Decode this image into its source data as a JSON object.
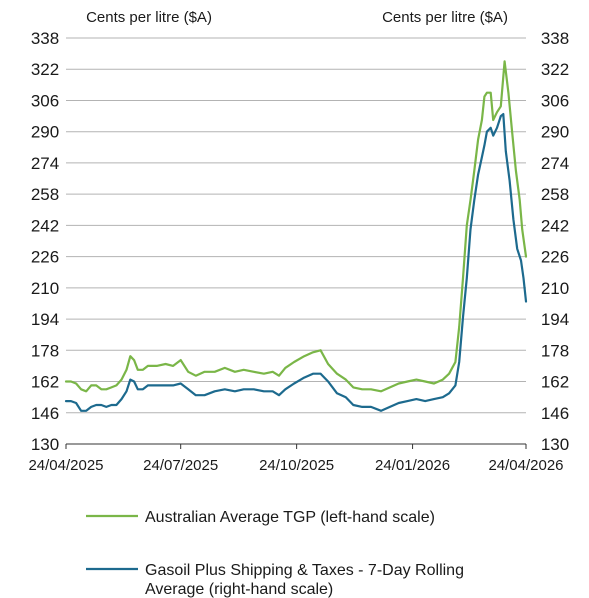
{
  "chart_data": {
    "type": "line",
    "left_axis_label": "Cents per litre ($A)",
    "right_axis_label": "Cents per litre ($A)",
    "ylim": [
      130,
      338
    ],
    "y_ticks": [
      338,
      322,
      306,
      290,
      274,
      258,
      242,
      226,
      210,
      194,
      178,
      162,
      146,
      130
    ],
    "x_range": [
      "2025-04-24",
      "2026-04-24"
    ],
    "x_tick_labels": [
      "24/04/2025",
      "24/07/2025",
      "24/10/2025",
      "24/01/2026",
      "24/04/2026"
    ],
    "grid": true,
    "legend_position": "bottom",
    "series": [
      {
        "name": "Australian Average TGP (left-hand scale)",
        "axis": "left",
        "color": "#7ab648",
        "points": [
          [
            "2025-04-24",
            162
          ],
          [
            "2025-04-28",
            162
          ],
          [
            "2025-05-02",
            161
          ],
          [
            "2025-05-06",
            158
          ],
          [
            "2025-05-10",
            157
          ],
          [
            "2025-05-14",
            160
          ],
          [
            "2025-05-18",
            160
          ],
          [
            "2025-05-22",
            158
          ],
          [
            "2025-05-26",
            158
          ],
          [
            "2025-05-30",
            159
          ],
          [
            "2025-06-03",
            160
          ],
          [
            "2025-06-07",
            163
          ],
          [
            "2025-06-11",
            168
          ],
          [
            "2025-06-14",
            175
          ],
          [
            "2025-06-17",
            173
          ],
          [
            "2025-06-20",
            168
          ],
          [
            "2025-06-24",
            168
          ],
          [
            "2025-06-28",
            170
          ],
          [
            "2025-07-05",
            170
          ],
          [
            "2025-07-12",
            171
          ],
          [
            "2025-07-18",
            170
          ],
          [
            "2025-07-24",
            173
          ],
          [
            "2025-07-30",
            167
          ],
          [
            "2025-08-05",
            165
          ],
          [
            "2025-08-12",
            167
          ],
          [
            "2025-08-20",
            167
          ],
          [
            "2025-08-28",
            169
          ],
          [
            "2025-09-05",
            167
          ],
          [
            "2025-09-12",
            168
          ],
          [
            "2025-09-20",
            167
          ],
          [
            "2025-09-28",
            166
          ],
          [
            "2025-10-05",
            167
          ],
          [
            "2025-10-10",
            165
          ],
          [
            "2025-10-15",
            169
          ],
          [
            "2025-10-22",
            172
          ],
          [
            "2025-10-30",
            175
          ],
          [
            "2025-11-06",
            177
          ],
          [
            "2025-11-12",
            178
          ],
          [
            "2025-11-18",
            171
          ],
          [
            "2025-11-25",
            166
          ],
          [
            "2025-12-02",
            163
          ],
          [
            "2025-12-08",
            159
          ],
          [
            "2025-12-15",
            158
          ],
          [
            "2025-12-22",
            158
          ],
          [
            "2025-12-30",
            157
          ],
          [
            "2026-01-06",
            159
          ],
          [
            "2026-01-13",
            161
          ],
          [
            "2026-01-20",
            162
          ],
          [
            "2026-01-27",
            163
          ],
          [
            "2026-02-03",
            162
          ],
          [
            "2026-02-10",
            161
          ],
          [
            "2026-02-17",
            163
          ],
          [
            "2026-02-22",
            166
          ],
          [
            "2026-02-27",
            172
          ],
          [
            "2026-03-02",
            190
          ],
          [
            "2026-03-05",
            215
          ],
          [
            "2026-03-08",
            242
          ],
          [
            "2026-03-11",
            255
          ],
          [
            "2026-03-14",
            270
          ],
          [
            "2026-03-17",
            286
          ],
          [
            "2026-03-20",
            296
          ],
          [
            "2026-03-22",
            308
          ],
          [
            "2026-03-24",
            310
          ],
          [
            "2026-03-27",
            310
          ],
          [
            "2026-03-29",
            296
          ],
          [
            "2026-04-01",
            300
          ],
          [
            "2026-04-04",
            303
          ],
          [
            "2026-04-07",
            326
          ],
          [
            "2026-04-10",
            310
          ],
          [
            "2026-04-13",
            290
          ],
          [
            "2026-04-16",
            270
          ],
          [
            "2026-04-19",
            255
          ],
          [
            "2026-04-21",
            240
          ],
          [
            "2026-04-24",
            226
          ]
        ]
      },
      {
        "name": "Gasoil Plus Shipping & Taxes - 7-Day Rolling Average (right-hand scale)",
        "axis": "right",
        "color": "#1d6a8e",
        "points": [
          [
            "2025-04-24",
            152
          ],
          [
            "2025-04-28",
            152
          ],
          [
            "2025-05-02",
            151
          ],
          [
            "2025-05-06",
            147
          ],
          [
            "2025-05-10",
            147
          ],
          [
            "2025-05-14",
            149
          ],
          [
            "2025-05-18",
            150
          ],
          [
            "2025-05-22",
            150
          ],
          [
            "2025-05-26",
            149
          ],
          [
            "2025-05-30",
            150
          ],
          [
            "2025-06-03",
            150
          ],
          [
            "2025-06-07",
            153
          ],
          [
            "2025-06-11",
            157
          ],
          [
            "2025-06-14",
            163
          ],
          [
            "2025-06-17",
            162
          ],
          [
            "2025-06-20",
            158
          ],
          [
            "2025-06-24",
            158
          ],
          [
            "2025-06-28",
            160
          ],
          [
            "2025-07-05",
            160
          ],
          [
            "2025-07-12",
            160
          ],
          [
            "2025-07-18",
            160
          ],
          [
            "2025-07-24",
            161
          ],
          [
            "2025-07-30",
            158
          ],
          [
            "2025-08-05",
            155
          ],
          [
            "2025-08-12",
            155
          ],
          [
            "2025-08-20",
            157
          ],
          [
            "2025-08-28",
            158
          ],
          [
            "2025-09-05",
            157
          ],
          [
            "2025-09-12",
            158
          ],
          [
            "2025-09-20",
            158
          ],
          [
            "2025-09-28",
            157
          ],
          [
            "2025-10-05",
            157
          ],
          [
            "2025-10-10",
            155
          ],
          [
            "2025-10-15",
            158
          ],
          [
            "2025-10-22",
            161
          ],
          [
            "2025-10-30",
            164
          ],
          [
            "2025-11-06",
            166
          ],
          [
            "2025-11-12",
            166
          ],
          [
            "2025-11-18",
            162
          ],
          [
            "2025-11-25",
            156
          ],
          [
            "2025-12-02",
            154
          ],
          [
            "2025-12-08",
            150
          ],
          [
            "2025-12-15",
            149
          ],
          [
            "2025-12-22",
            149
          ],
          [
            "2025-12-30",
            147
          ],
          [
            "2026-01-06",
            149
          ],
          [
            "2026-01-13",
            151
          ],
          [
            "2026-01-20",
            152
          ],
          [
            "2026-01-27",
            153
          ],
          [
            "2026-02-03",
            152
          ],
          [
            "2026-02-10",
            153
          ],
          [
            "2026-02-17",
            154
          ],
          [
            "2026-02-22",
            156
          ],
          [
            "2026-02-27",
            160
          ],
          [
            "2026-03-02",
            172
          ],
          [
            "2026-03-05",
            195
          ],
          [
            "2026-03-08",
            215
          ],
          [
            "2026-03-11",
            240
          ],
          [
            "2026-03-14",
            255
          ],
          [
            "2026-03-17",
            268
          ],
          [
            "2026-03-20",
            277
          ],
          [
            "2026-03-22",
            283
          ],
          [
            "2026-03-24",
            290
          ],
          [
            "2026-03-27",
            292
          ],
          [
            "2026-03-29",
            288
          ],
          [
            "2026-04-01",
            292
          ],
          [
            "2026-04-04",
            298
          ],
          [
            "2026-04-06",
            299
          ],
          [
            "2026-04-08",
            280
          ],
          [
            "2026-04-11",
            265
          ],
          [
            "2026-04-14",
            245
          ],
          [
            "2026-04-17",
            230
          ],
          [
            "2026-04-20",
            224
          ],
          [
            "2026-04-22",
            215
          ],
          [
            "2026-04-24",
            203
          ]
        ]
      }
    ]
  }
}
